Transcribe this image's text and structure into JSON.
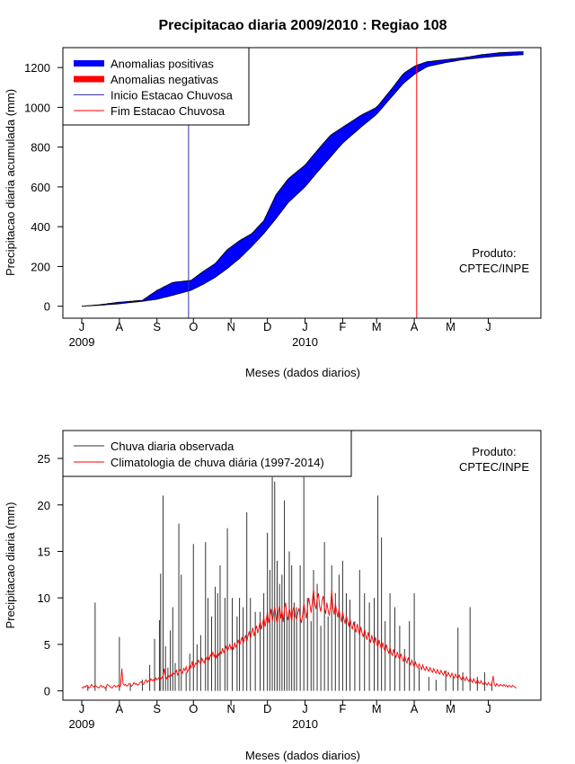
{
  "title": "Precipitacao diaria 2009/2010 : Regiao 108",
  "chart_data": [
    {
      "type": "area",
      "ylabel": "Precipitacao diaria acumulada (mm)",
      "xlabel": "Meses (dados diarios)",
      "xlim": [
        0,
        365
      ],
      "ylim": [
        -60,
        1300
      ],
      "yticks": [
        0,
        200,
        400,
        600,
        800,
        1000,
        1200
      ],
      "months": [
        {
          "label": "J",
          "day": 0
        },
        {
          "label": "A",
          "day": 31
        },
        {
          "label": "S",
          "day": 62
        },
        {
          "label": "O",
          "day": 92
        },
        {
          "label": "N",
          "day": 123
        },
        {
          "label": "D",
          "day": 153
        },
        {
          "label": "J",
          "day": 184
        },
        {
          "label": "F",
          "day": 215
        },
        {
          "label": "M",
          "day": 243
        },
        {
          "label": "A",
          "day": 274
        },
        {
          "label": "M",
          "day": 304
        },
        {
          "label": "J",
          "day": 335
        }
      ],
      "years": [
        {
          "label": "2009",
          "day": 0
        },
        {
          "label": "2010",
          "day": 184
        }
      ],
      "legend": [
        {
          "label": "Anomalias positivas",
          "color": "#0000ff",
          "style": "thick"
        },
        {
          "label": "Anomalias negativas",
          "color": "#ff0000",
          "style": "thick"
        },
        {
          "label": "Inicio Estacao Chuvosa",
          "color": "#3333aa",
          "style": "thin"
        },
        {
          "label": "Fim Estacao Chuvosa",
          "color": "#ff0000",
          "style": "thin"
        }
      ],
      "rainy_season_start_day": 88,
      "rainy_season_end_day": 276,
      "observed_cumulative": {
        "x": [
          0,
          15,
          30,
          50,
          62,
          75,
          90,
          100,
          110,
          120,
          130,
          140,
          150,
          160,
          170,
          184,
          195,
          205,
          215,
          230,
          243,
          255,
          265,
          275,
          285,
          300,
          315,
          330,
          345,
          365
        ],
        "y": [
          0,
          8,
          20,
          30,
          80,
          120,
          130,
          175,
          215,
          285,
          330,
          365,
          430,
          560,
          640,
          710,
          790,
          860,
          900,
          960,
          1000,
          1090,
          1170,
          1210,
          1230,
          1240,
          1250,
          1265,
          1275,
          1280
        ]
      },
      "climatology_cumulative": {
        "x": [
          0,
          15,
          30,
          50,
          62,
          75,
          90,
          100,
          110,
          120,
          130,
          140,
          150,
          160,
          170,
          184,
          195,
          205,
          215,
          230,
          243,
          255,
          265,
          275,
          285,
          300,
          315,
          330,
          345,
          365
        ],
        "y": [
          0,
          5,
          12,
          25,
          35,
          55,
          80,
          110,
          145,
          190,
          240,
          300,
          365,
          440,
          520,
          600,
          680,
          750,
          820,
          900,
          965,
          1050,
          1120,
          1170,
          1205,
          1225,
          1240,
          1250,
          1258,
          1265
        ]
      },
      "annotation": [
        "Produto:",
        "CPTEC/INPE"
      ]
    },
    {
      "type": "bar",
      "ylabel": "Precipitacao diaria (mm)",
      "xlabel": "Meses (dados diarios)",
      "xlim": [
        0,
        365
      ],
      "ylim": [
        -1,
        28
      ],
      "yticks": [
        0,
        5,
        10,
        15,
        20,
        25
      ],
      "legend": [
        {
          "label": "Chuva diaria observada",
          "color": "#333333"
        },
        {
          "label": "Climatologia de chuva diária (1997-2014)",
          "color": "#ff0000"
        }
      ],
      "observed_daily": [
        [
          5,
          0.6
        ],
        [
          11,
          9.5
        ],
        [
          20,
          0.5
        ],
        [
          31,
          5.8
        ],
        [
          40,
          0.8
        ],
        [
          50,
          1.2
        ],
        [
          56,
          2.8
        ],
        [
          60,
          5.6
        ],
        [
          64,
          7.6
        ],
        [
          65,
          12.6
        ],
        [
          67,
          21.0
        ],
        [
          69,
          4.8
        ],
        [
          71,
          2.5
        ],
        [
          73,
          6.5
        ],
        [
          75,
          9.0
        ],
        [
          77,
          3.0
        ],
        [
          80,
          18.0
        ],
        [
          82,
          12.5
        ],
        [
          86,
          2.0
        ],
        [
          89,
          4.0
        ],
        [
          92,
          15.8
        ],
        [
          95,
          5.0
        ],
        [
          98,
          6.0
        ],
        [
          102,
          16.0
        ],
        [
          104,
          10.0
        ],
        [
          107,
          8.0
        ],
        [
          110,
          11.2
        ],
        [
          112,
          10.5
        ],
        [
          114,
          13.5
        ],
        [
          118,
          10.0
        ],
        [
          120,
          17.5
        ],
        [
          124,
          10.0
        ],
        [
          128,
          8.0
        ],
        [
          130,
          10.0
        ],
        [
          133,
          9.0
        ],
        [
          136,
          19.2
        ],
        [
          139,
          10.0
        ],
        [
          143,
          8.5
        ],
        [
          147,
          8.5
        ],
        [
          150,
          10.5
        ],
        [
          153,
          17.0
        ],
        [
          155,
          13.0
        ],
        [
          157,
          23.0
        ],
        [
          159,
          22.5
        ],
        [
          161,
          14.0
        ],
        [
          163,
          11.5
        ],
        [
          165,
          12.5
        ],
        [
          167,
          20.5
        ],
        [
          169,
          8.5
        ],
        [
          171,
          15.0
        ],
        [
          173,
          13.5
        ],
        [
          175,
          9.5
        ],
        [
          177,
          9.0
        ],
        [
          180,
          13.5
        ],
        [
          183,
          23.0
        ],
        [
          186,
          10.0
        ],
        [
          189,
          7.5
        ],
        [
          191,
          13.0
        ],
        [
          194,
          11.5
        ],
        [
          197,
          7.0
        ],
        [
          200,
          16.0
        ],
        [
          203,
          8.0
        ],
        [
          206,
          13.5
        ],
        [
          209,
          10.5
        ],
        [
          212,
          12.5
        ],
        [
          215,
          14.0
        ],
        [
          218,
          10.5
        ],
        [
          221,
          9.8
        ],
        [
          225,
          7.5
        ],
        [
          229,
          13.0
        ],
        [
          233,
          10.5
        ],
        [
          237,
          9.5
        ],
        [
          241,
          10.0
        ],
        [
          244,
          21.0
        ],
        [
          247,
          16.5
        ],
        [
          250,
          7.5
        ],
        [
          254,
          10.5
        ],
        [
          258,
          9.0
        ],
        [
          262,
          7.0
        ],
        [
          266,
          4.5
        ],
        [
          270,
          7.5
        ],
        [
          274,
          10.5
        ],
        [
          278,
          2.5
        ],
        [
          286,
          1.5
        ],
        [
          292,
          1.2
        ],
        [
          300,
          2.2
        ],
        [
          306,
          1.5
        ],
        [
          310,
          6.8
        ],
        [
          314,
          2.0
        ],
        [
          320,
          9.0
        ],
        [
          326,
          1.5
        ],
        [
          332,
          2.0
        ],
        [
          338,
          1.0
        ]
      ],
      "climatology_daily": [
        0.4,
        0.3,
        0.5,
        0.4,
        0.6,
        0.5,
        0.3,
        0.4,
        0.7,
        0.5,
        0.4,
        0.6,
        0.5,
        0.4,
        0.3,
        0.5,
        0.6,
        0.4,
        0.5,
        0.3,
        0.4,
        0.7,
        0.6,
        0.5,
        0.4,
        0.3,
        0.5,
        0.6,
        0.4,
        0.5,
        0.6,
        0.4,
        0.5,
        2.4,
        0.8,
        0.6,
        0.7,
        0.5,
        0.6,
        0.8,
        0.7,
        0.5,
        0.6,
        0.9,
        0.7,
        0.8,
        0.6,
        0.7,
        0.9,
        1.0,
        0.8,
        0.7,
        1.0,
        1.2,
        0.9,
        1.1,
        1.0,
        1.3,
        1.1,
        1.2,
        1.0,
        1.4,
        1.2,
        1.3,
        1.5,
        1.2,
        1.4,
        1.6,
        2.4,
        1.5,
        1.3,
        1.7,
        1.5,
        1.8,
        1.6,
        2.0,
        1.8,
        1.9,
        2.2,
        1.7,
        2.0,
        2.3,
        2.1,
        1.9,
        2.4,
        2.2,
        2.6,
        2.0,
        2.3,
        2.8,
        2.5,
        3.2,
        2.4,
        2.7,
        3.0,
        2.8,
        3.3,
        3.1,
        2.9,
        3.5,
        3.2,
        3.0,
        3.6,
        3.4,
        3.8,
        3.3,
        3.9,
        3.6,
        4.2,
        3.7,
        4.0,
        3.5,
        4.1,
        3.8,
        4.3,
        4.0,
        4.6,
        4.1,
        4.4,
        4.8,
        4.3,
        4.6,
        5.0,
        4.5,
        4.9,
        4.4,
        5.2,
        4.7,
        5.0,
        5.5,
        4.9,
        5.3,
        5.8,
        5.1,
        5.6,
        6.0,
        5.3,
        5.9,
        6.4,
        5.7,
        6.2,
        6.8,
        5.9,
        6.5,
        7.0,
        6.2,
        6.8,
        7.5,
        6.6,
        7.2,
        8.0,
        6.9,
        7.6,
        8.5,
        7.3,
        8.0,
        8.8,
        7.5,
        8.2,
        9.0,
        8.0,
        7.2,
        8.5,
        9.2,
        7.8,
        8.6,
        7.4,
        8.8,
        9.5,
        8.1,
        7.6,
        8.9,
        8.3,
        7.5,
        8.7,
        9.1,
        8.0,
        7.7,
        8.4,
        8.9,
        7.9,
        7.3,
        8.2,
        9.4,
        8.6,
        7.8,
        9.0,
        10.0,
        9.3,
        8.4,
        9.6,
        11.0,
        9.4,
        8.8,
        9.9,
        10.5,
        9.1,
        8.5,
        9.7,
        10.2,
        8.9,
        8.3,
        9.5,
        8.7,
        8.1,
        9.2,
        10.8,
        9.0,
        8.2,
        9.4,
        8.6,
        7.9,
        8.8,
        8.0,
        7.4,
        8.5,
        7.8,
        7.2,
        8.1,
        7.5,
        6.9,
        7.8,
        7.1,
        6.6,
        7.4,
        6.8,
        6.3,
        7.2,
        6.5,
        6.0,
        6.9,
        6.2,
        5.8,
        6.6,
        6.0,
        5.5,
        6.3,
        5.7,
        5.2,
        6.0,
        5.4,
        5.0,
        5.8,
        5.1,
        4.7,
        5.5,
        4.9,
        4.5,
        5.2,
        4.6,
        4.2,
        5.0,
        4.4,
        4.0,
        4.7,
        4.1,
        3.8,
        4.5,
        3.9,
        3.6,
        4.2,
        3.7,
        3.4,
        4.0,
        3.5,
        3.2,
        3.8,
        3.3,
        3.0,
        3.6,
        3.1,
        2.8,
        3.3,
        2.9,
        2.6,
        3.1,
        2.7,
        2.5,
        2.9,
        2.6,
        2.3,
        2.8,
        2.4,
        2.2,
        2.6,
        2.3,
        2.1,
        2.5,
        2.2,
        2.0,
        2.4,
        2.1,
        1.9,
        2.3,
        2.0,
        1.8,
        2.2,
        1.9,
        1.7,
        2.1,
        1.8,
        1.6,
        2.0,
        1.7,
        1.5,
        1.9,
        1.6,
        1.4,
        1.8,
        1.5,
        1.3,
        1.7,
        1.4,
        1.2,
        1.6,
        1.3,
        1.1,
        1.5,
        1.2,
        1.0,
        1.4,
        1.1,
        0.9,
        1.3,
        1.0,
        0.8,
        1.2,
        0.9,
        0.8,
        1.1,
        0.8,
        0.7,
        1.0,
        0.8,
        0.6,
        0.9,
        0.7,
        0.6,
        0.8,
        1.6,
        0.7,
        0.5,
        0.8,
        0.6,
        0.5,
        0.7,
        0.6,
        0.5,
        0.7,
        0.5,
        0.6,
        0.4,
        0.6,
        0.5,
        0.4,
        0.6,
        0.5,
        0.4,
        0.3
      ],
      "annotation": [
        "Produto:",
        "CPTEC/INPE"
      ]
    }
  ]
}
